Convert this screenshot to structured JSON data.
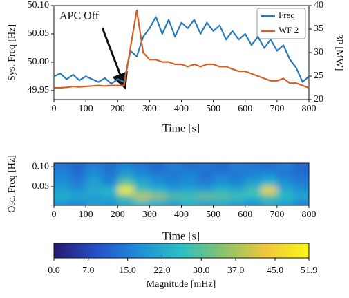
{
  "chart_data": [
    {
      "type": "line",
      "ylabel": "Sys. Freq [Hz]",
      "y2label": "3P [MW]",
      "xlabel": "Time [s]",
      "annotations": [
        {
          "text": "APC Off"
        }
      ],
      "legend": "upper right",
      "xlim": [
        0,
        800
      ],
      "xticks": [
        0,
        100,
        200,
        300,
        400,
        500,
        600,
        700,
        800
      ],
      "ylim": [
        49.934,
        50.1
      ],
      "yticks": [
        49.95,
        {
          "value": 50.0,
          "label": "50.00"
        },
        50.05,
        {
          "value": 50.1,
          "label": "50.10"
        }
      ],
      "y2lim": [
        20,
        40
      ],
      "y2ticks": [
        20,
        25,
        30,
        35,
        40
      ],
      "x": [
        0,
        20,
        40,
        60,
        80,
        100,
        120,
        140,
        160,
        180,
        200,
        220,
        240,
        260,
        280,
        300,
        320,
        340,
        360,
        380,
        400,
        420,
        440,
        460,
        480,
        500,
        520,
        540,
        560,
        580,
        600,
        620,
        640,
        660,
        680,
        700,
        720,
        740,
        760,
        780,
        800
      ],
      "series": [
        {
          "name": "Freq",
          "color": "#2a7ab9",
          "axis": "y",
          "values": [
            49.975,
            49.98,
            49.97,
            49.978,
            49.968,
            49.975,
            49.97,
            49.965,
            49.972,
            49.962,
            49.97,
            49.965,
            50.02,
            50.01,
            50.045,
            50.06,
            50.08,
            50.05,
            50.075,
            50.045,
            50.07,
            50.06,
            50.075,
            50.05,
            50.07,
            50.055,
            50.065,
            50.04,
            50.055,
            50.04,
            50.05,
            50.03,
            50.045,
            50.025,
            50.04,
            50.02,
            50.03,
            50.005,
            49.99,
            49.965,
            49.975
          ]
        },
        {
          "name": "WF 2",
          "color": "#d35f27",
          "axis": "y2",
          "values": [
            22.5,
            22.5,
            22.6,
            22.8,
            22.7,
            22.8,
            22.9,
            23,
            22.9,
            23,
            23,
            23,
            31,
            39,
            30,
            28.5,
            28.5,
            28,
            28,
            27.5,
            27.5,
            27,
            27.5,
            27,
            27.5,
            27.5,
            27,
            27,
            26.5,
            26,
            26,
            25.5,
            25,
            24.5,
            24,
            24,
            24.5,
            23.5,
            23.5,
            23,
            22.5
          ]
        }
      ]
    },
    {
      "type": "heatmap",
      "ylabel": "Osc. Freq [Hz]",
      "xlabel": "Time [s]",
      "xlim": [
        0,
        800
      ],
      "xticks": [
        0,
        100,
        200,
        300,
        400,
        500,
        600,
        700,
        800
      ],
      "ylim": [
        0.003,
        0.109
      ],
      "yticks": [
        0.05,
        {
          "value": 0.1,
          "label": "0.10"
        }
      ],
      "x": [
        25,
        75,
        125,
        175,
        225,
        275,
        325,
        375,
        425,
        475,
        525,
        575,
        625,
        675,
        725,
        775
      ],
      "y": [
        0.1,
        0.08,
        0.06,
        0.04,
        0.025,
        0.01
      ],
      "z": [
        [
          14,
          12,
          15,
          13,
          16,
          14,
          12,
          15,
          13,
          14,
          12,
          15,
          14,
          13,
          15,
          12
        ],
        [
          16,
          13,
          18,
          14,
          20,
          17,
          15,
          14,
          16,
          13,
          15,
          14,
          16,
          17,
          14,
          13
        ],
        [
          18,
          15,
          20,
          16,
          30,
          22,
          18,
          16,
          17,
          15,
          18,
          16,
          20,
          24,
          18,
          15
        ],
        [
          20,
          18,
          22,
          24,
          50,
          28,
          24,
          20,
          22,
          20,
          24,
          22,
          28,
          45,
          22,
          18
        ],
        [
          24,
          22,
          20,
          22,
          30,
          40,
          36,
          30,
          28,
          32,
          30,
          28,
          26,
          30,
          26,
          22
        ],
        [
          18,
          16,
          20,
          18,
          22,
          25,
          22,
          20,
          24,
          20,
          22,
          20,
          18,
          22,
          20,
          16
        ]
      ],
      "colormap": [
        "#27186e",
        "#2450c8",
        "#1e8fd8",
        "#2bbfc4",
        "#8cc36a",
        "#f0c83a",
        "#f9f71a"
      ],
      "clim": [
        0,
        51.9
      ],
      "cticks": [
        {
          "value": 0,
          "label": "0.0"
        },
        {
          "value": 7,
          "label": "7.0"
        },
        {
          "value": 15,
          "label": "15.0"
        },
        {
          "value": 22,
          "label": "22.0"
        },
        {
          "value": 30,
          "label": "30.0"
        },
        {
          "value": 37,
          "label": "37.0"
        },
        {
          "value": 45,
          "label": "45.0"
        },
        51.9
      ],
      "clabel": "Magnitude [mHz]"
    }
  ]
}
